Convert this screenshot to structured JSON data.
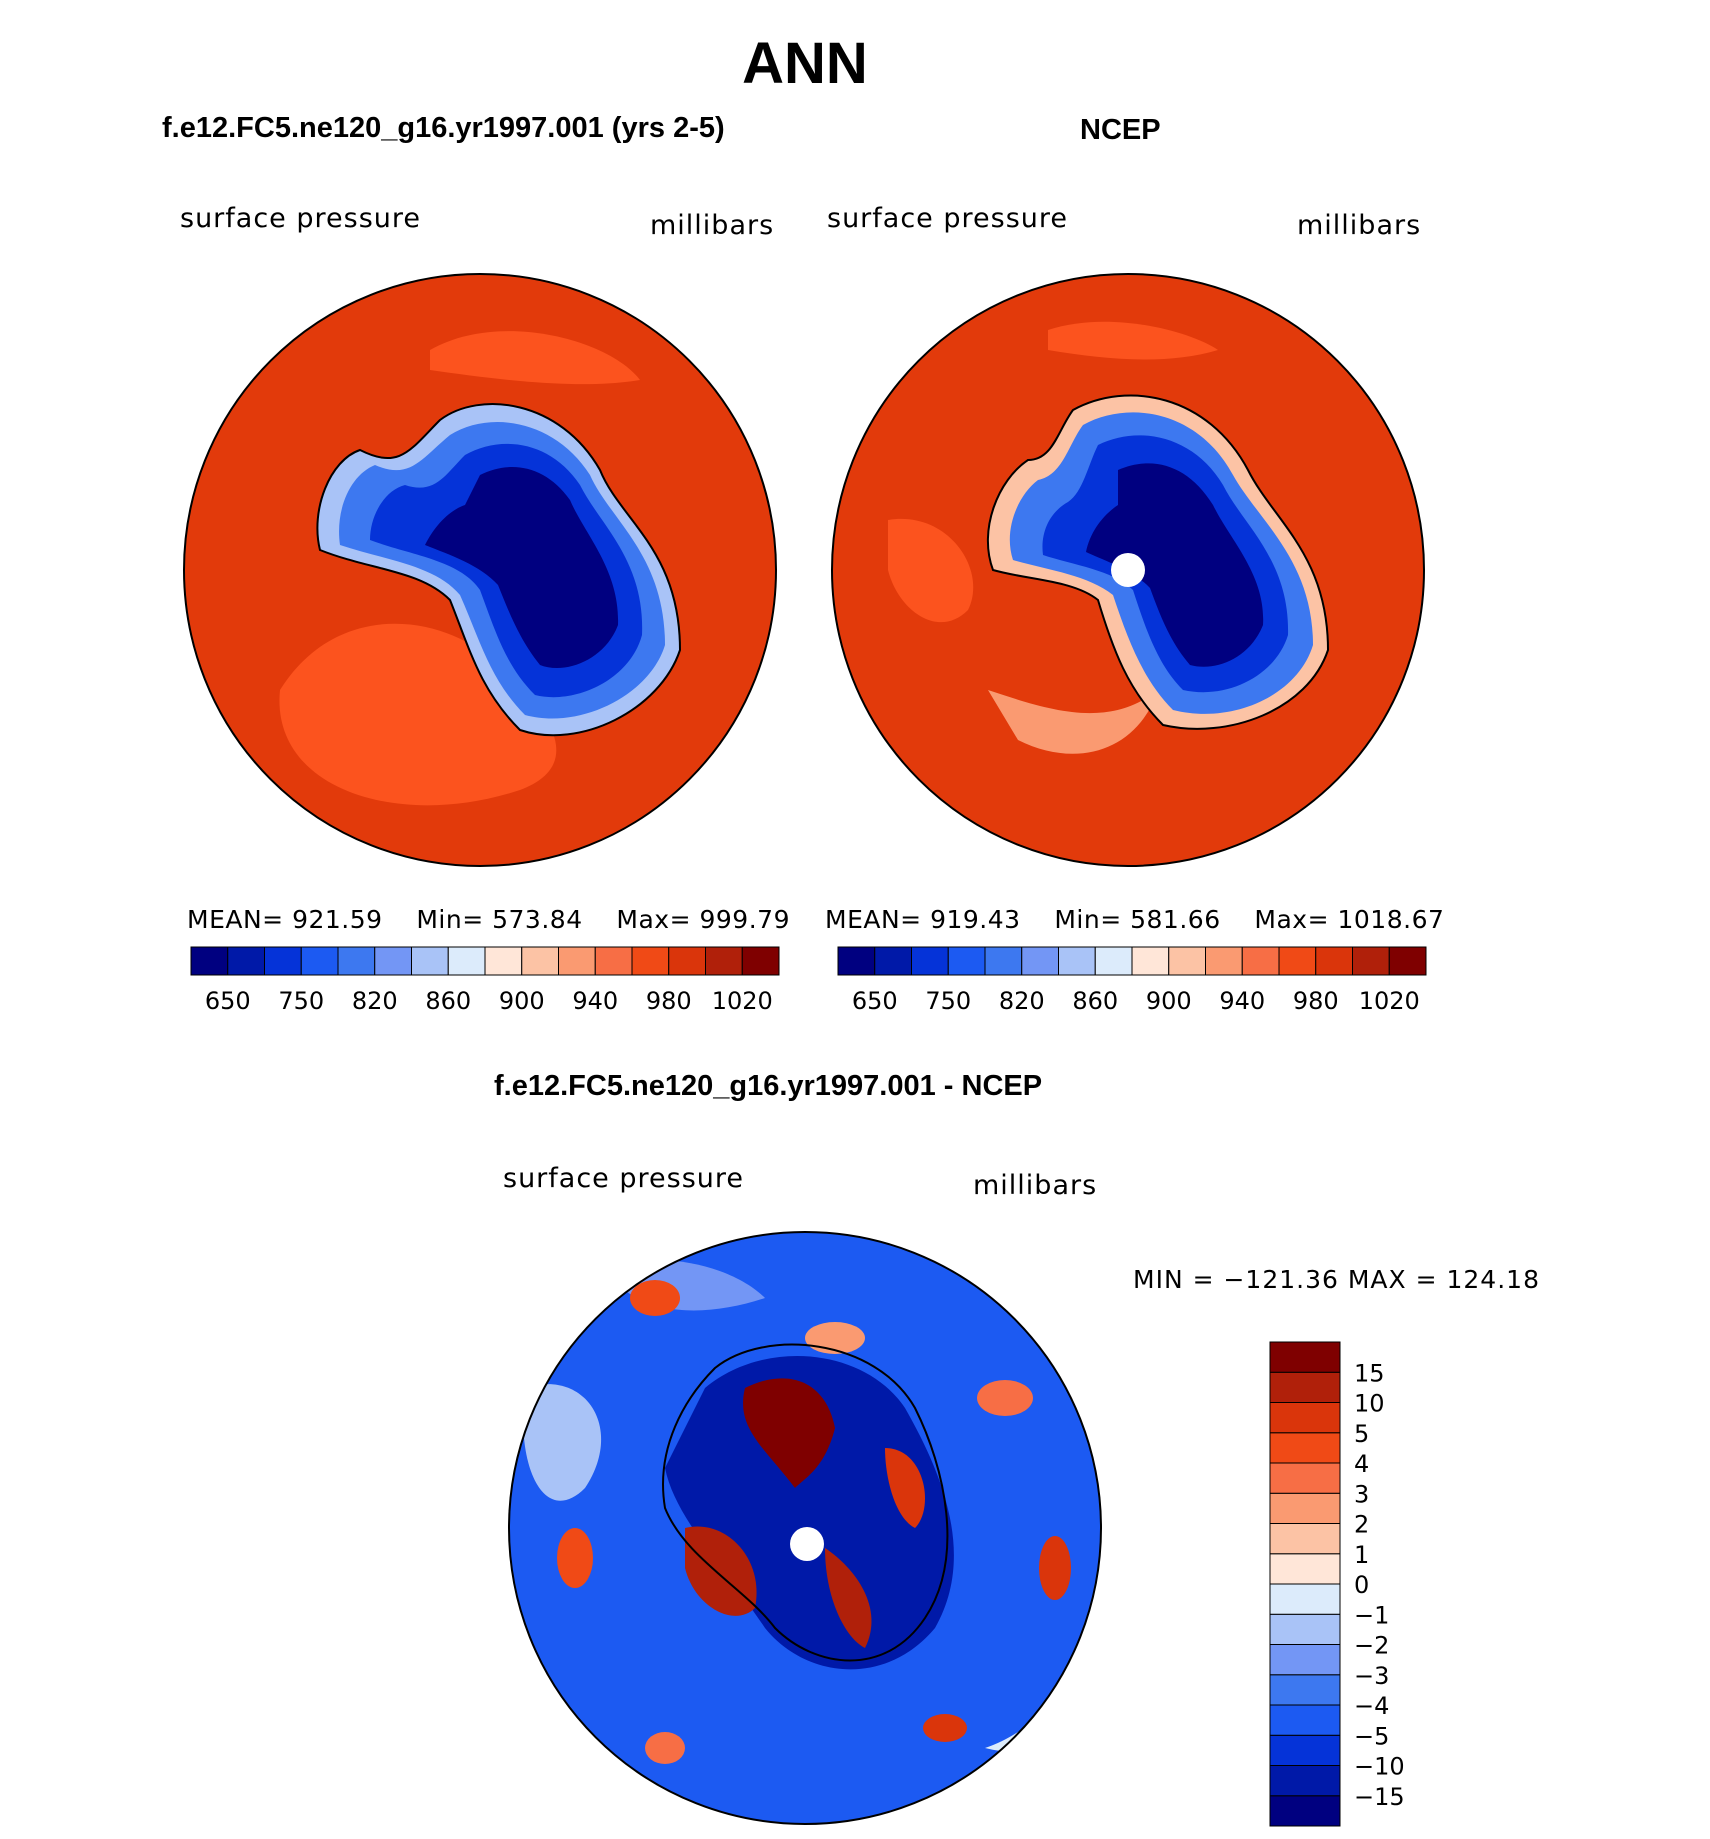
{
  "figure": {
    "season": "ANN",
    "colors": {
      "ocean_high": "#E23A0B",
      "ocean_mid": "#FC531E",
      "land_outline": "#000000"
    }
  },
  "panel_model": {
    "title": "f.e12.FC5.ne120_g16.yr1997.001 (yrs 2-5)",
    "variable": "surface pressure",
    "units": "millibars",
    "mean_label": "MEAN=",
    "mean": "921.59",
    "min_label": "Min=",
    "min": "573.84",
    "max_label": "Max=",
    "max": "999.79"
  },
  "panel_obs": {
    "title": "NCEP",
    "variable": "surface pressure",
    "units": "millibars",
    "mean_label": "MEAN=",
    "mean": "919.43",
    "min_label": "Min=",
    "min": "581.66",
    "max_label": "Max=",
    "max": "1018.67"
  },
  "panel_diff": {
    "title": "f.e12.FC5.ne120_g16.yr1997.001 - NCEP",
    "variable": "surface pressure",
    "units": "millibars",
    "minmax_text": "MIN = −121.36 MAX = 124.18"
  },
  "colorbar_abs": {
    "colors": [
      "#000080",
      "#0019A8",
      "#0533D8",
      "#1C5AF2",
      "#3D78F0",
      "#7396F5",
      "#A9C3F7",
      "#DCEBFB",
      "#FFE6D8",
      "#FCC3A5",
      "#FA9A71",
      "#F76E45",
      "#F04A16",
      "#DA350B",
      "#B0200A",
      "#7F0000"
    ],
    "tick_labels": [
      "650",
      "750",
      "820",
      "860",
      "900",
      "940",
      "980",
      "1020"
    ]
  },
  "colorbar_diff": {
    "colors": [
      "#000080",
      "#0019A8",
      "#0533D8",
      "#1C5AF2",
      "#3D78F0",
      "#7396F5",
      "#A9C3F7",
      "#DCEBFB",
      "#FFE6D8",
      "#FCC3A5",
      "#FA9A71",
      "#F76E45",
      "#F04A16",
      "#DA350B",
      "#B0200A",
      "#7F0000"
    ],
    "tick_labels": [
      "−15",
      "−10",
      "−5",
      "−4",
      "−3",
      "−2",
      "−1",
      "0",
      "1",
      "2",
      "3",
      "4",
      "5",
      "10",
      "15"
    ]
  }
}
